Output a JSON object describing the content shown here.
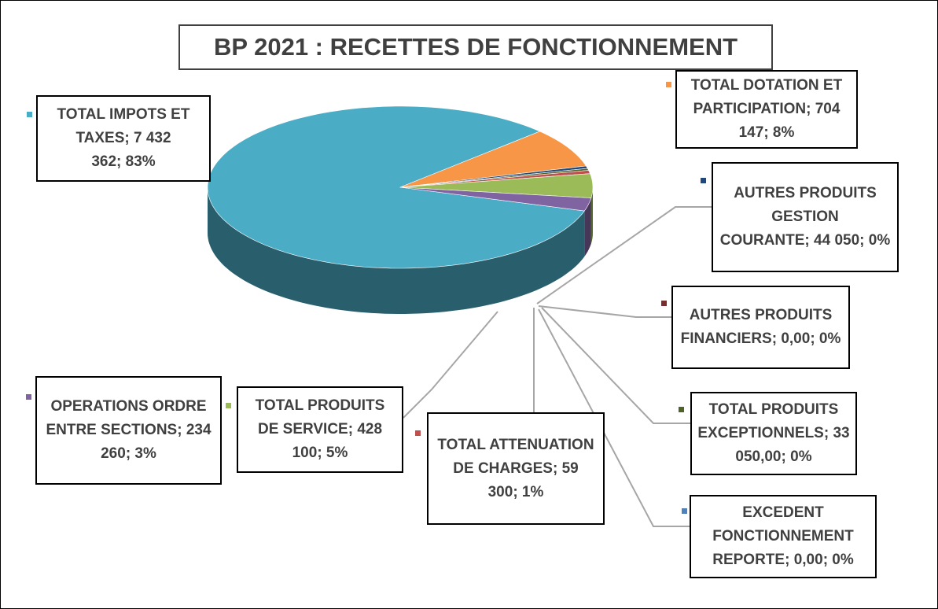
{
  "chart_data": {
    "type": "pie",
    "title": "BP 2021 : RECETTES DE FONCTIONNEMENT",
    "label_separator": "; ",
    "categories": [
      "TOTAL IMPOTS ET TAXES",
      "TOTAL DOTATION ET PARTICIPATION",
      "AUTRES PRODUITS GESTION COURANTE",
      "AUTRES PRODUITS FINANCIERS",
      "TOTAL PRODUITS EXCEPTIONNELS",
      "EXCEDENT FONCTIONNEMENT REPORTE",
      "TOTAL ATTENUATION DE CHARGES",
      "TOTAL PRODUITS DE SERVICE",
      "OPERATIONS ORDRE ENTRE SECTIONS"
    ],
    "values": [
      7432362,
      704147,
      44050,
      0,
      33050,
      0,
      59300,
      428100,
      234260
    ],
    "value_labels": [
      "7 432 362",
      "704 147",
      "44 050",
      "0,00",
      "33 050,00",
      "0,00",
      "59 300",
      "428 100",
      "234 260"
    ],
    "percents": [
      83,
      8,
      0,
      0,
      0,
      0,
      1,
      5,
      3
    ],
    "percent_labels": [
      "83%",
      "8%",
      "0%",
      "0%",
      "0%",
      "0%",
      "1%",
      "5%",
      "3%"
    ],
    "colors": [
      "#4bacc6",
      "#f79646",
      "#1f497d",
      "#7b2c2c",
      "#4f6228",
      "#4f81bd",
      "#c0504d",
      "#9bbb59",
      "#8064a2"
    ]
  }
}
